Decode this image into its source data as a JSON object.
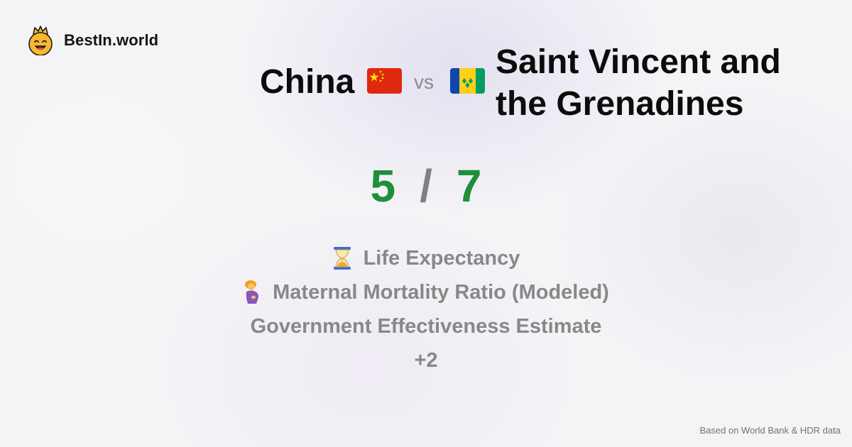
{
  "brand": {
    "name": "BestIn.world",
    "logo_icon": "crown-smiley-icon"
  },
  "comparison": {
    "country_a": {
      "name": "China",
      "flag_icon": "china-flag-icon"
    },
    "separator": "vs",
    "country_b": {
      "name": "Saint Vincent and the Grenadines",
      "flag_icon": "saint-vincent-flag-icon"
    }
  },
  "score": {
    "a": "5",
    "separator": "/",
    "b": "7"
  },
  "metrics": [
    {
      "label": "Life Expectancy",
      "icon": "hourglass-icon"
    },
    {
      "label": "Maternal Mortality Ratio (Modeled)",
      "icon": "pregnant-woman-icon"
    },
    {
      "label": "Government Effectiveness Estimate",
      "icon": ""
    }
  ],
  "more": "+2",
  "footer": {
    "source": "Based on World Bank & HDR data"
  },
  "colors": {
    "score": "#1f8f3a",
    "muted": "#888888",
    "text": "#0c0c0c"
  }
}
